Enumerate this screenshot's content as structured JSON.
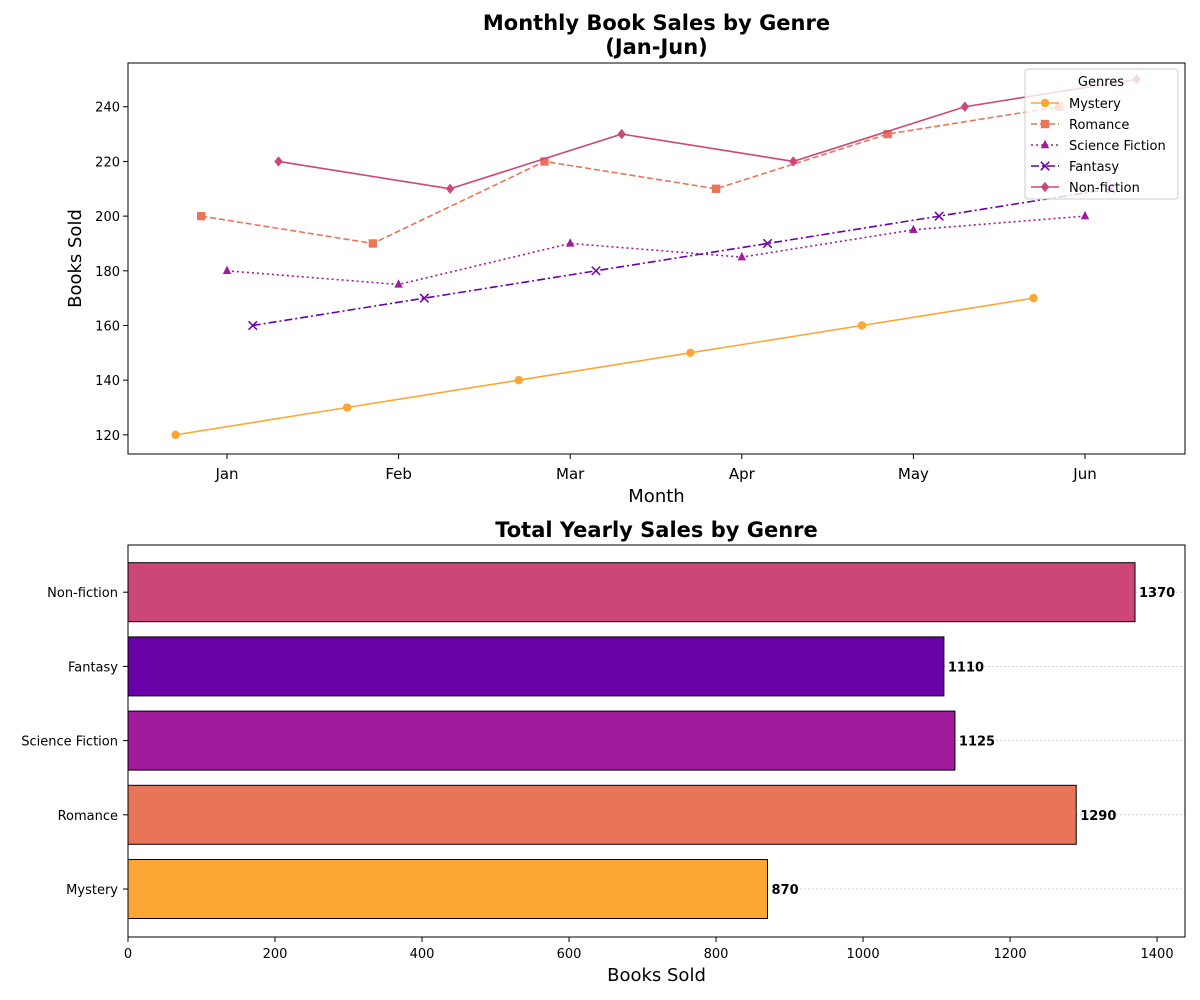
{
  "chart_data": [
    {
      "type": "line",
      "title": "Monthly Book Sales by Genre\n(Jan-Jun)",
      "xlabel": "Month",
      "ylabel": "Books Sold",
      "categories": [
        "Jan",
        "Feb",
        "Mar",
        "Apr",
        "May",
        "Jun"
      ],
      "ylim": [
        113,
        256
      ],
      "yticks": [
        120,
        140,
        160,
        180,
        200,
        220,
        240
      ],
      "legend": {
        "title": "Genres",
        "placement": "upper right"
      },
      "series": [
        {
          "name": "Mystery",
          "values": [
            120,
            130,
            140,
            150,
            160,
            170
          ],
          "color": "#fca636",
          "linestyle": "solid",
          "marker": "circle",
          "offset": -0.3
        },
        {
          "name": "Romance",
          "values": [
            200,
            190,
            220,
            210,
            230,
            240
          ],
          "color": "#e97558",
          "linestyle": "dashed",
          "marker": "square",
          "offset": -0.15
        },
        {
          "name": "Science Fiction",
          "values": [
            180,
            175,
            190,
            185,
            195,
            200
          ],
          "color": "#a01a9c",
          "linestyle": "dotted",
          "marker": "triangle",
          "offset": 0
        },
        {
          "name": "Fantasy",
          "values": [
            160,
            170,
            180,
            190,
            200,
            210
          ],
          "color": "#6a00a8",
          "linestyle": "dashdot",
          "marker": "x",
          "offset": 0.15
        },
        {
          "name": "Non-fiction",
          "values": [
            220,
            210,
            230,
            220,
            240,
            250
          ],
          "color": "#cc4778",
          "linestyle": "solid",
          "marker": "diamond",
          "offset": 0.3
        }
      ],
      "grid": false
    },
    {
      "type": "bar",
      "orientation": "horizontal",
      "title": "Total Yearly Sales by Genre",
      "xlabel": "Books Sold",
      "ylabel": "",
      "categories": [
        "Mystery",
        "Romance",
        "Science Fiction",
        "Fantasy",
        "Non-fiction"
      ],
      "values": [
        870,
        1290,
        1125,
        1110,
        1370
      ],
      "colors": [
        "#fca636",
        "#e97558",
        "#a01a9c",
        "#6a00a8",
        "#cc4778"
      ],
      "data_labels": [
        "870",
        "1290",
        "1125",
        "1110",
        "1370"
      ],
      "xlim": [
        0,
        1438
      ],
      "xticks": [
        0,
        200,
        400,
        600,
        800,
        1000,
        1200,
        1400
      ],
      "grid": "x dotted"
    }
  ]
}
